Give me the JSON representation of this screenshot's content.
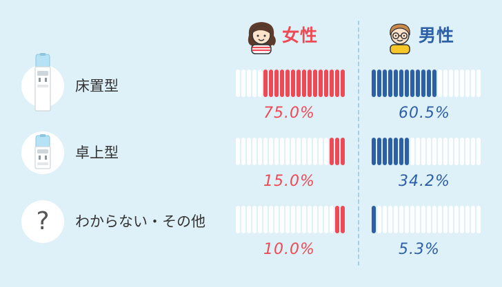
{
  "headers": {
    "female": "女性",
    "male": "男性"
  },
  "colors": {
    "background": "#dff1f8",
    "female": "#ee4a55",
    "male": "#2d5fa6",
    "empty_stripe": "#ffffff"
  },
  "chart_data": {
    "type": "bar",
    "stripes_per_bar": 20,
    "categories": [
      "床置型",
      "卓上型",
      "わからない・その他"
    ],
    "category_icons": [
      "floor-water-dispenser-icon",
      "desktop-water-dispenser-icon",
      "question-icon"
    ],
    "unknown_symbol": "?",
    "series": [
      {
        "name": "女性",
        "values": [
          75.0,
          15.0,
          10.0
        ],
        "labels": [
          "75.0%",
          "15.0%",
          "10.0%"
        ]
      },
      {
        "name": "男性",
        "values": [
          60.5,
          34.2,
          5.3
        ],
        "labels": [
          "60.5%",
          "34.2%",
          "5.3%"
        ]
      }
    ]
  }
}
